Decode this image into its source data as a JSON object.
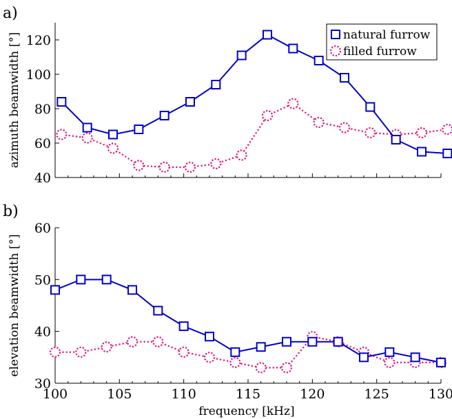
{
  "chart_data": [
    {
      "type": "line",
      "panel_label": "a)",
      "ylabel": "azimuth beamwidth [°]",
      "xlabel": "",
      "xlim": [
        100,
        130
      ],
      "ylim": [
        40,
        130
      ],
      "yticks": [
        40,
        60,
        80,
        100,
        120
      ],
      "grid": false,
      "legend_position": "top-right",
      "series": [
        {
          "name": "natural furrow",
          "color": "#0000cc",
          "marker": "square",
          "line_style": "solid",
          "x": [
            100.5,
            102.5,
            104.5,
            106.5,
            108.5,
            110.5,
            112.5,
            114.5,
            116.5,
            118.5,
            120.5,
            122.5,
            124.5,
            126.5,
            128.5,
            130.5
          ],
          "y": [
            84,
            69,
            65,
            68,
            76,
            84,
            94,
            111,
            123,
            115,
            108,
            98,
            81,
            62,
            55,
            54
          ]
        },
        {
          "name": "filled furrow",
          "color": "#e0107a",
          "marker": "circle",
          "line_style": "dotted",
          "x": [
            100.5,
            102.5,
            104.5,
            106.5,
            108.5,
            110.5,
            112.5,
            114.5,
            116.5,
            118.5,
            120.5,
            122.5,
            124.5,
            126.5,
            128.5,
            130.5
          ],
          "y": [
            65,
            63,
            57,
            47,
            46,
            46,
            48,
            53,
            76,
            83,
            72,
            69,
            66,
            65,
            66,
            68
          ]
        }
      ]
    },
    {
      "type": "line",
      "panel_label": "b)",
      "ylabel": "elevation beamwidth [°]",
      "xlabel": "frequency [kHz]",
      "xlim": [
        100,
        130
      ],
      "ylim": [
        30,
        60
      ],
      "xticks": [
        100,
        105,
        110,
        115,
        120,
        125,
        130
      ],
      "yticks": [
        30,
        40,
        50,
        60
      ],
      "grid": false,
      "series": [
        {
          "name": "natural furrow",
          "color": "#0000cc",
          "marker": "square",
          "line_style": "solid",
          "x": [
            100,
            102,
            104,
            106,
            108,
            110,
            112,
            114,
            116,
            118,
            120,
            122,
            124,
            126,
            128,
            130
          ],
          "y": [
            48,
            50,
            50,
            48,
            44,
            41,
            39,
            36,
            37,
            38,
            38,
            38,
            35,
            36,
            35,
            34
          ]
        },
        {
          "name": "filled furrow",
          "color": "#e0107a",
          "marker": "circle",
          "line_style": "dotted",
          "x": [
            100,
            102,
            104,
            106,
            108,
            110,
            112,
            114,
            116,
            118,
            120,
            122,
            124,
            126,
            128,
            130
          ],
          "y": [
            36,
            36,
            37,
            38,
            38,
            36,
            35,
            34,
            33,
            33,
            39,
            38,
            36,
            34,
            34,
            34
          ]
        }
      ]
    }
  ]
}
